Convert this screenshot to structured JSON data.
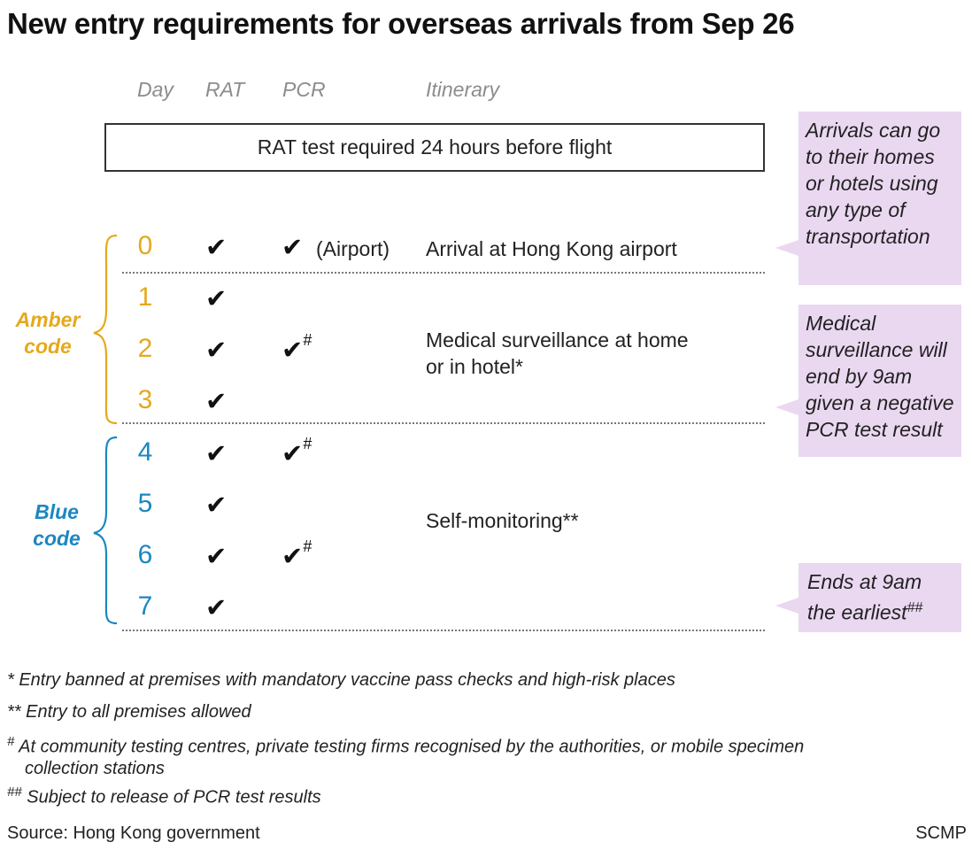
{
  "title": "New entry requirements for overseas arrivals from Sep 26",
  "headers": {
    "day": "Day",
    "rat": "RAT",
    "pcr": "PCR",
    "itinerary": "Itinerary"
  },
  "pre_flight": "RAT test required 24 hours before flight",
  "colors": {
    "amber": "#e5a91c",
    "blue": "#1a87c2",
    "note_bg": "#ead8f1"
  },
  "icons": {
    "check": "check-mark-icon",
    "brace": "curly-brace-icon"
  },
  "check_glyph": "✔",
  "hash": "#",
  "codes": {
    "amber": [
      "Amber",
      "code"
    ],
    "blue": [
      "Blue",
      "code"
    ]
  },
  "days": [
    {
      "day": "0",
      "rat": true,
      "pcr": true,
      "pcr_note": "(Airport)",
      "pcr_hash": false
    },
    {
      "day": "1",
      "rat": true,
      "pcr": false
    },
    {
      "day": "2",
      "rat": true,
      "pcr": true,
      "pcr_hash": true
    },
    {
      "day": "3",
      "rat": true,
      "pcr": false
    },
    {
      "day": "4",
      "rat": true,
      "pcr": true,
      "pcr_hash": true
    },
    {
      "day": "5",
      "rat": true,
      "pcr": false
    },
    {
      "day": "6",
      "rat": true,
      "pcr": true,
      "pcr_hash": true
    },
    {
      "day": "7",
      "rat": true,
      "pcr": false
    }
  ],
  "itinerary": {
    "arrival": "Arrival at Hong Kong airport",
    "medical": [
      "Medical surveillance at home",
      "or in hotel*"
    ],
    "self_monitoring": "Self-monitoring**"
  },
  "notes": {
    "arrivals": [
      "Arrivals can go",
      "to their homes",
      "or hotels using",
      "any type of",
      "transportation"
    ],
    "surveillance": [
      "Medical",
      "surveillance will",
      "end by 9am",
      "given a negative",
      "PCR test result"
    ],
    "ends": [
      "Ends at 9am",
      "the earliest"
    ],
    "ends_sup": "##"
  },
  "footnotes": {
    "star": "* Entry banned at premises with mandatory vaccine pass checks and high-risk places",
    "double_star": "** Entry to all premises allowed",
    "hash_mark": "#",
    "hash_text": [
      "At community testing centres, private testing firms recognised by the authorities, or mobile specimen",
      "collection stations"
    ],
    "double_hash_mark": "##",
    "double_hash_text": "Subject to release of PCR test results"
  },
  "source": "Source: Hong Kong government",
  "credit": "SCMP"
}
